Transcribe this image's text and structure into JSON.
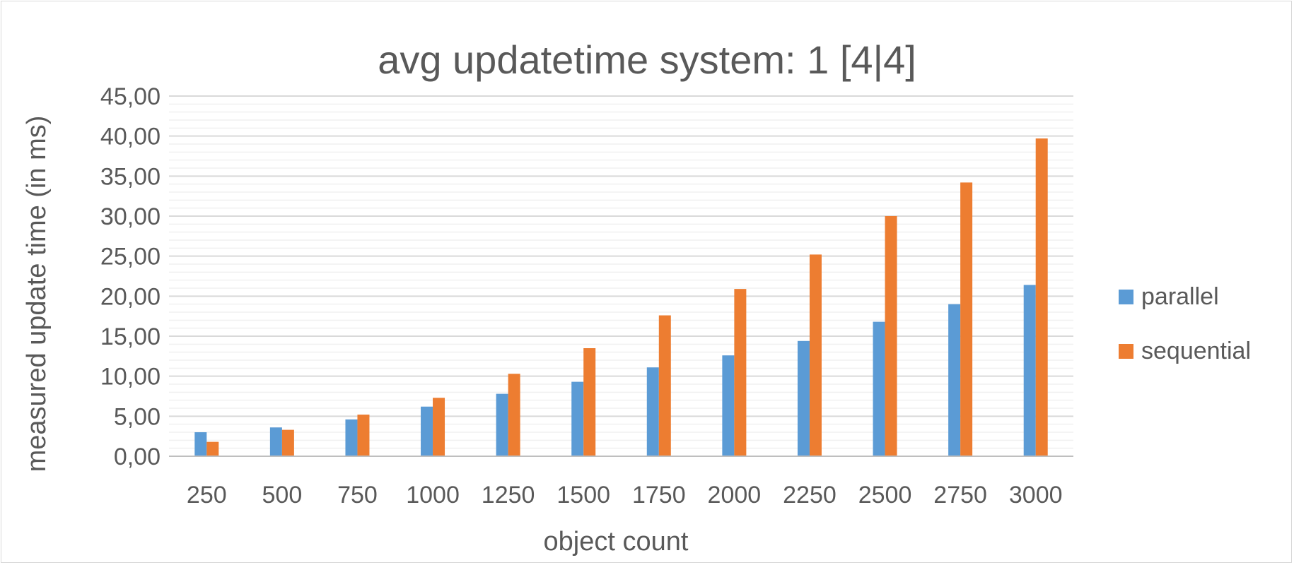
{
  "chart_data": {
    "type": "bar",
    "title": "avg updatetime system: 1 [4|4]",
    "xlabel": "object count",
    "ylabel": "measured update time (in ms)",
    "categories": [
      "250",
      "500",
      "750",
      "1000",
      "1250",
      "1500",
      "1750",
      "2000",
      "2250",
      "2500",
      "2750",
      "3000"
    ],
    "series": [
      {
        "name": "parallel",
        "color": "#5b9bd5",
        "values": [
          3.0,
          3.6,
          4.6,
          6.2,
          7.8,
          9.3,
          11.1,
          12.6,
          14.4,
          16.8,
          19.0,
          21.4
        ]
      },
      {
        "name": "sequential",
        "color": "#ed7d31",
        "values": [
          1.8,
          3.3,
          5.2,
          7.3,
          10.3,
          13.5,
          17.6,
          20.9,
          25.2,
          30.0,
          34.2,
          39.7
        ]
      }
    ],
    "ylim": [
      0,
      45
    ],
    "y_ticks": [
      "0,00",
      "5,00",
      "10,00",
      "15,00",
      "20,00",
      "25,00",
      "30,00",
      "35,00",
      "40,00",
      "45,00"
    ],
    "major_tick_step": 5,
    "minor_tick_step": 1,
    "grid": true,
    "legend_position": "right"
  }
}
